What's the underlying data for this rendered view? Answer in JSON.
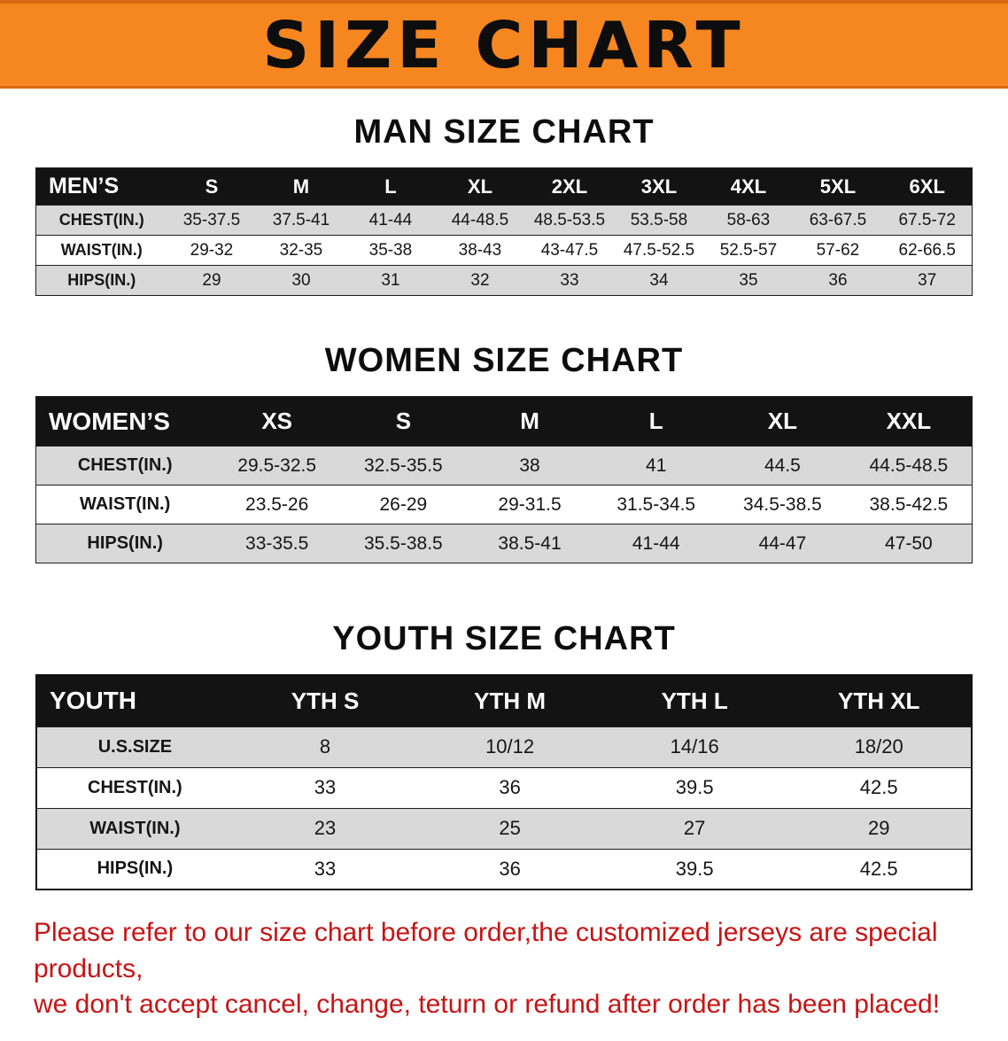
{
  "banner": {
    "title": "SIZE CHART",
    "bg_color": "#f6861f",
    "text_color": "#0d0d0d"
  },
  "sections": [
    {
      "key": "men",
      "heading": "MAN SIZE CHART",
      "table": {
        "header": [
          "MEN’S",
          "S",
          "M",
          "L",
          "XL",
          "2XL",
          "3XL",
          "4XL",
          "5XL",
          "6XL"
        ],
        "rows": [
          {
            "label": "CHEST(IN.)",
            "values": [
              "35-37.5",
              "37.5-41",
              "41-44",
              "44-48.5",
              "48.5-53.5",
              "53.5-58",
              "58-63",
              "63-67.5",
              "67.5-72"
            ]
          },
          {
            "label": "WAIST(IN.)",
            "values": [
              "29-32",
              "32-35",
              "35-38",
              "38-43",
              "43-47.5",
              "47.5-52.5",
              "52.5-57",
              "57-62",
              "62-66.5"
            ]
          },
          {
            "label": "HIPS(IN.)",
            "values": [
              "29",
              "30",
              "31",
              "32",
              "33",
              "34",
              "35",
              "36",
              "37"
            ]
          }
        ]
      }
    },
    {
      "key": "women",
      "heading": "WOMEN SIZE CHART",
      "table": {
        "header": [
          "WOMEN’S",
          "XS",
          "S",
          "M",
          "L",
          "XL",
          "XXL"
        ],
        "rows": [
          {
            "label": "CHEST(IN.)",
            "values": [
              "29.5-32.5",
              "32.5-35.5",
              "38",
              "41",
              "44.5",
              "44.5-48.5"
            ]
          },
          {
            "label": "WAIST(IN.)",
            "values": [
              "23.5-26",
              "26-29",
              "29-31.5",
              "31.5-34.5",
              "34.5-38.5",
              "38.5-42.5"
            ]
          },
          {
            "label": "HIPS(IN.)",
            "values": [
              "33-35.5",
              "35.5-38.5",
              "38.5-41",
              "41-44",
              "44-47",
              "47-50"
            ]
          }
        ]
      }
    },
    {
      "key": "youth",
      "heading": "YOUTH SIZE CHART",
      "table": {
        "header": [
          "YOUTH",
          "YTH S",
          "YTH M",
          "YTH L",
          "YTH XL"
        ],
        "rows": [
          {
            "label": "U.S.SIZE",
            "values": [
              "8",
              "10/12",
              "14/16",
              "18/20"
            ]
          },
          {
            "label": "CHEST(IN.)",
            "values": [
              "33",
              "36",
              "39.5",
              "42.5"
            ]
          },
          {
            "label": "WAIST(IN.)",
            "values": [
              "23",
              "25",
              "27",
              "29"
            ]
          },
          {
            "label": "HIPS(IN.)",
            "values": [
              "33",
              "36",
              "39.5",
              "42.5"
            ]
          }
        ]
      }
    }
  ],
  "footer": {
    "line1": "Please refer to our size chart before order,the customized jerseys are special products,",
    "line2": "we don't accept cancel, change, teturn or refund after order has been placed!",
    "text_color": "#c71414"
  }
}
